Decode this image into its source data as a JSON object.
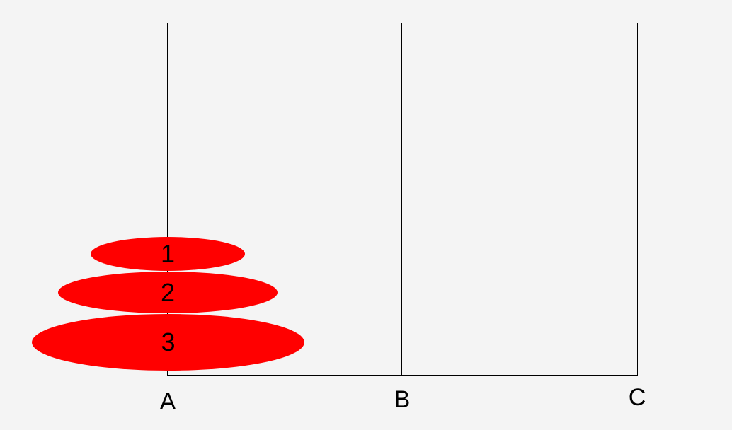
{
  "colors": {
    "background": "#f4f4f4",
    "disk": "#ff0000",
    "line": "#000000"
  },
  "pegs": [
    {
      "label": "A",
      "disks": [
        "1",
        "2",
        "3"
      ]
    },
    {
      "label": "B",
      "disks": []
    },
    {
      "label": "C",
      "disks": []
    }
  ],
  "disks": [
    {
      "label": "1"
    },
    {
      "label": "2"
    },
    {
      "label": "3"
    }
  ]
}
